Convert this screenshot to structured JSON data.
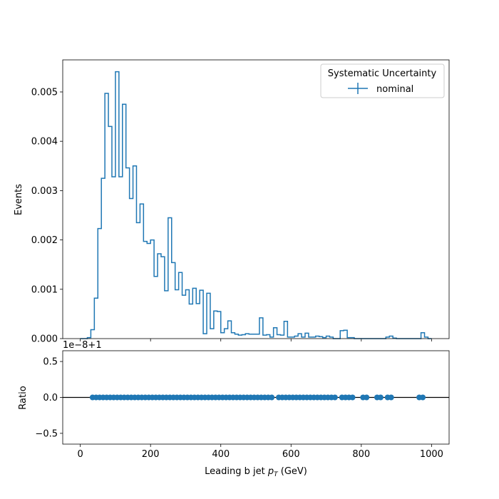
{
  "chart_data": [
    {
      "type": "histogram",
      "xlim": [
        -50,
        1050
      ],
      "ylim": [
        0,
        0.00565
      ],
      "ylabel": "Events",
      "yticks": [
        0.0,
        0.001,
        0.002,
        0.003,
        0.004,
        0.005
      ],
      "ytick_labels": [
        "0.000",
        "0.001",
        "0.002",
        "0.003",
        "0.004",
        "0.005"
      ],
      "xticks": [
        0,
        200,
        400,
        600,
        800,
        1000
      ],
      "bin_edges_start": 0,
      "bin_width": 10,
      "legend": {
        "title": "Systematic Uncertainty",
        "placement": "top-right"
      },
      "series": [
        {
          "name": "nominal",
          "color": "#1f77b4",
          "values": [
            0.0,
            0.0,
            2e-05,
            0.00018,
            0.00082,
            0.00223,
            0.00325,
            0.00497,
            0.0043,
            0.00328,
            0.00541,
            0.00328,
            0.00475,
            0.00346,
            0.00284,
            0.0035,
            0.00235,
            0.00273,
            0.00197,
            0.00193,
            0.002,
            0.00126,
            0.00172,
            0.00166,
            0.00097,
            0.00245,
            0.00154,
            0.00099,
            0.00134,
            0.00088,
            0.00099,
            0.0007,
            0.00102,
            0.00071,
            0.00098,
            0.0001,
            0.00092,
            0.0002,
            0.00056,
            0.00055,
            0.00012,
            0.0002,
            0.00036,
            0.00012,
            9e-05,
            7e-05,
            8e-05,
            0.0001,
            9e-05,
            9e-05,
            9e-05,
            0.00042,
            7e-05,
            8e-05,
            3e-05,
            0.00022,
            8e-05,
            7e-05,
            0.00035,
            3e-05,
            3e-05,
            5e-05,
            0.0001,
            3e-05,
            0.00011,
            3e-05,
            3e-05,
            5e-05,
            4e-05,
            2e-05,
            5e-05,
            3e-05,
            0.0,
            0.0,
            0.00016,
            0.00017,
            2e-05,
            2e-05,
            0.0,
            0.0,
            0.0,
            0.0,
            0.0,
            0.0,
            0.0,
            0.0,
            0.0,
            3e-05,
            5e-05,
            1e-05,
            0.0,
            0.0,
            0.0,
            0.0,
            0.0,
            0.0,
            0.0,
            0.00012,
            3e-05,
            0.0
          ]
        }
      ]
    },
    {
      "type": "scatter",
      "xlim": [
        -50,
        1050
      ],
      "ylim": [
        -0.65,
        0.65
      ],
      "xlabel": "Leading b jet  p_T (GeV)",
      "ylabel": "Ratio",
      "offset_label": "1e−8+1",
      "yticks": [
        -0.5,
        0.0,
        0.5
      ],
      "ytick_labels": [
        "−0.5",
        "0.0",
        "0.5"
      ],
      "xticks": [
        0,
        200,
        400,
        600,
        800,
        1000
      ],
      "xtick_labels": [
        "0",
        "200",
        "400",
        "600",
        "800",
        "1000"
      ],
      "reference_line": 0.0,
      "series": [
        {
          "name": "nominal",
          "color": "#1f77b4",
          "x": [
            35,
            45,
            55,
            65,
            75,
            85,
            95,
            105,
            115,
            125,
            135,
            145,
            155,
            165,
            175,
            185,
            195,
            205,
            215,
            225,
            235,
            245,
            255,
            265,
            275,
            285,
            295,
            305,
            315,
            325,
            335,
            345,
            355,
            365,
            375,
            385,
            395,
            405,
            415,
            425,
            435,
            445,
            455,
            465,
            475,
            485,
            495,
            505,
            515,
            525,
            535,
            545,
            565,
            575,
            585,
            595,
            605,
            615,
            625,
            635,
            645,
            655,
            665,
            675,
            685,
            695,
            705,
            715,
            725,
            745,
            755,
            765,
            775,
            805,
            815,
            845,
            855,
            875,
            885,
            965,
            975
          ],
          "y": [
            0.0,
            0.0,
            0.0,
            0.0,
            0.0,
            0.0,
            0.0,
            0.0,
            0.0,
            0.0,
            0.0,
            0.0,
            0.0,
            0.0,
            0.0,
            0.0,
            0.0,
            0.0,
            0.0,
            0.0,
            0.0,
            0.0,
            0.0,
            0.0,
            0.0,
            0.0,
            0.0,
            0.0,
            0.0,
            0.0,
            0.0,
            0.0,
            0.0,
            0.0,
            0.0,
            0.0,
            0.0,
            0.0,
            0.0,
            0.0,
            0.0,
            0.0,
            0.0,
            0.0,
            0.0,
            0.0,
            0.0,
            0.0,
            0.0,
            0.0,
            0.0,
            0.0,
            0.0,
            0.0,
            0.0,
            0.0,
            0.0,
            0.0,
            0.0,
            0.0,
            0.0,
            0.0,
            0.0,
            0.0,
            0.0,
            0.0,
            0.0,
            0.0,
            0.0,
            0.0,
            0.0,
            0.0,
            0.0,
            0.0,
            0.0,
            0.0,
            0.0,
            0.0,
            0.0,
            0.0,
            0.0
          ]
        }
      ]
    }
  ],
  "labels": {
    "ylabel_top": "Events",
    "ylabel_bottom": "Ratio",
    "xlabel_main": "Leading b jet  ",
    "xlabel_p": "p",
    "xlabel_sub": "T",
    "xlabel_unit": " (GeV)",
    "offset": "1e−8+1",
    "legend_title": "Systematic Uncertainty",
    "legend_entry": "nominal"
  }
}
